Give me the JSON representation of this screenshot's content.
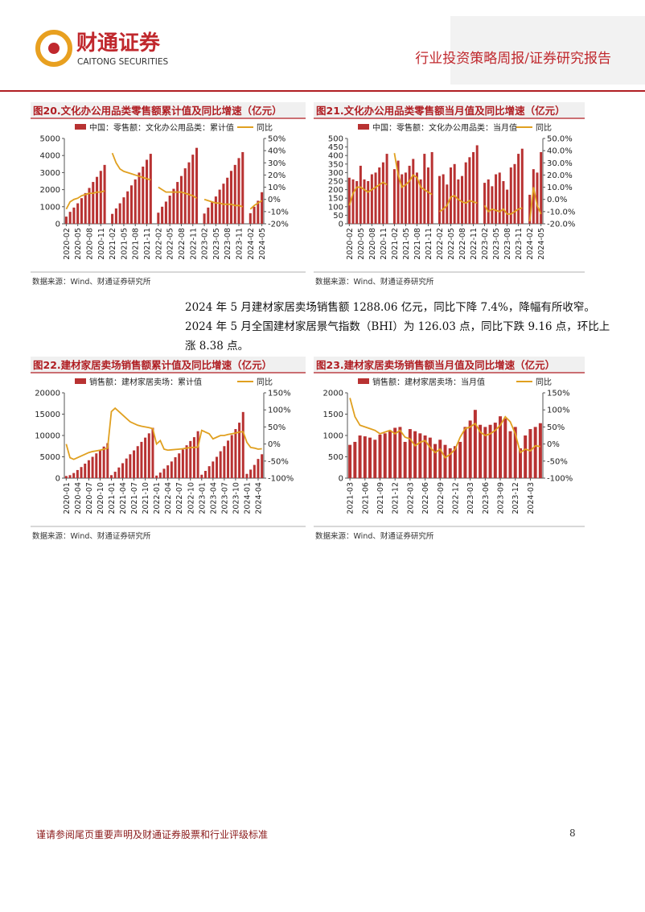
{
  "header": {
    "logo_cn": "财通证券",
    "logo_en": "CAITONG SECURITIES",
    "report_type": "行业投资策略周报/证券研究报告"
  },
  "chart_data": [
    {
      "type": "combo",
      "title": "图20.文化办公用品类零售额累计值及同比增速（亿元）",
      "categories": [
        "2020-02",
        null,
        null,
        "2020-05",
        null,
        null,
        "2020-08",
        null,
        null,
        "2020-11",
        null,
        null,
        "2021-02",
        null,
        null,
        "2021-05",
        null,
        null,
        "2021-08",
        null,
        null,
        "2021-11",
        null,
        null,
        "2022-02",
        null,
        null,
        "2022-05",
        null,
        null,
        "2022-08",
        null,
        null,
        "2022-11",
        null,
        null,
        "2023-02",
        null,
        null,
        "2023-05",
        null,
        null,
        "2023-08",
        null,
        null,
        "2023-11",
        null,
        null,
        "2024-02",
        null,
        null,
        "2024-05"
      ],
      "series": [
        {
          "name": "中国：零售额：文化办公用品类：累计值",
          "color": "#b83232",
          "values": [
            420,
            700,
            950,
            1200,
            1500,
            1800,
            2100,
            2450,
            2750,
            3100,
            3450,
            null,
            580,
            900,
            1200,
            1550,
            1900,
            2250,
            2600,
            3000,
            3350,
            3750,
            4100,
            null,
            650,
            1000,
            1300,
            1650,
            2050,
            2450,
            2800,
            3250,
            3600,
            4050,
            4450,
            null,
            600,
            950,
            1250,
            1600,
            2000,
            2350,
            2700,
            3100,
            3450,
            3850,
            4200,
            null,
            620,
            1000,
            1350,
            1850
          ]
        },
        {
          "name": "同比",
          "color": "#e0a020",
          "axis": "y2",
          "values": [
            -8,
            -2,
            0,
            1,
            3,
            4,
            5,
            5,
            6,
            6,
            7,
            null,
            38,
            30,
            25,
            23,
            22,
            21,
            20,
            19,
            18,
            17,
            16,
            null,
            10,
            8,
            6,
            6,
            6,
            6,
            6,
            5,
            4,
            3,
            1,
            null,
            0,
            -1,
            -2,
            -3,
            -3,
            -4,
            -4,
            -4,
            -5,
            -5,
            -6,
            null,
            -8,
            -5,
            -3,
            -1
          ]
        }
      ],
      "ylim": [
        0,
        5000
      ],
      "yticks": [
        0,
        1000,
        2000,
        3000,
        4000,
        5000
      ],
      "y2lim": [
        -20,
        50
      ],
      "y2ticks": [
        {
          "value": -20,
          "label": "-20%"
        },
        {
          "value": -10,
          "label": "-10%"
        },
        {
          "value": 0,
          "label": "0%"
        },
        {
          "value": 10,
          "label": "10%"
        },
        {
          "value": 20,
          "label": "20%"
        },
        {
          "value": 30,
          "label": "30%"
        },
        {
          "value": 40,
          "label": "40%"
        },
        {
          "value": 50,
          "label": "50%"
        }
      ],
      "source": "数据来源：Wind、财通证券研究所"
    },
    {
      "type": "combo",
      "title": "图21.文化办公用品类零售额当月值及同比增速（亿元）",
      "categories": [
        "2020-02",
        null,
        null,
        "2020-05",
        null,
        null,
        "2020-08",
        null,
        null,
        "2020-11",
        null,
        null,
        "2021-02",
        null,
        null,
        "2021-05",
        null,
        null,
        "2021-08",
        null,
        null,
        "2021-11",
        null,
        null,
        "2022-02",
        null,
        null,
        "2022-05",
        null,
        null,
        "2022-08",
        null,
        null,
        "2022-11",
        null,
        null,
        "2023-02",
        null,
        null,
        "2023-05",
        null,
        null,
        "2023-08",
        null,
        null,
        "2023-11",
        null,
        null,
        "2024-02",
        null,
        null,
        "2024-05"
      ],
      "series": [
        {
          "name": "中国：零售额：文化办公用品类：当月值",
          "color": "#b83232",
          "values": [
            270,
            260,
            250,
            340,
            260,
            250,
            290,
            300,
            330,
            360,
            410,
            null,
            320,
            370,
            290,
            300,
            340,
            380,
            300,
            260,
            410,
            330,
            420,
            null,
            280,
            290,
            230,
            330,
            350,
            260,
            280,
            360,
            390,
            420,
            460,
            null,
            240,
            260,
            220,
            290,
            300,
            250,
            200,
            330,
            350,
            410,
            440,
            null,
            170,
            320,
            300,
            420
          ]
        },
        {
          "name": "同比",
          "color": "#e0a020",
          "axis": "y2",
          "values": [
            -5,
            5,
            10,
            10,
            8,
            6,
            8,
            10,
            12,
            14,
            12,
            null,
            38,
            20,
            10,
            12,
            15,
            20,
            18,
            10,
            8,
            6,
            4,
            null,
            -10,
            -8,
            -5,
            2,
            3,
            0,
            -2,
            -3,
            -1,
            -2,
            -3,
            null,
            -5,
            -10,
            -8,
            -9,
            -10,
            -8,
            -12,
            -12,
            -10,
            -8,
            -7,
            null,
            -18,
            10,
            -5,
            -12
          ]
        }
      ],
      "ylim": [
        0,
        500
      ],
      "yticks": [
        0,
        50,
        100,
        150,
        200,
        250,
        300,
        350,
        400,
        450,
        500
      ],
      "y2lim": [
        -20,
        50
      ],
      "y2ticks": [
        {
          "value": -20,
          "label": "-20.0%"
        },
        {
          "value": -10,
          "label": "-10.0%"
        },
        {
          "value": 0,
          "label": "0.0%"
        },
        {
          "value": 10,
          "label": "10.0%"
        },
        {
          "value": 20,
          "label": "20.0%"
        },
        {
          "value": 30,
          "label": "30.0%"
        },
        {
          "value": 40,
          "label": "40.0%"
        },
        {
          "value": 50,
          "label": "50.0%"
        }
      ],
      "source": "数据来源：Wind、财通证券研究所"
    },
    {
      "type": "combo",
      "title": "图22.建材家居卖场销售额累计值及同比增速（亿元）",
      "categories": [
        "2020-01",
        null,
        null,
        "2020-04",
        null,
        null,
        "2020-07",
        null,
        null,
        "2020-10",
        null,
        null,
        "2021-01",
        null,
        null,
        "2021-04",
        null,
        null,
        "2021-07",
        null,
        null,
        "2021-10",
        null,
        null,
        "2022-01",
        null,
        null,
        "2022-04",
        null,
        null,
        "2022-07",
        null,
        null,
        "2022-10",
        null,
        null,
        "2023-01",
        null,
        null,
        "2023-04",
        null,
        null,
        "2023-07",
        null,
        null,
        "2023-10",
        null,
        null,
        "2024-01",
        null,
        null,
        "2024-04",
        null
      ],
      "series": [
        {
          "name": "销售额：建材家居卖场：累计值",
          "color": "#b83232",
          "values": [
            500,
            700,
            1200,
            1900,
            2600,
            3400,
            4200,
            5000,
            5800,
            6600,
            7400,
            8200,
            700,
            1500,
            2500,
            3500,
            4600,
            5600,
            6500,
            7500,
            8500,
            9500,
            10500,
            11800,
            600,
            1300,
            2200,
            3000,
            3900,
            4900,
            5800,
            6700,
            7700,
            8700,
            9600,
            11000,
            800,
            1700,
            2800,
            3900,
            5000,
            6300,
            7500,
            8800,
            10100,
            11500,
            13000,
            15500,
            1000,
            2000,
            3100,
            4500,
            5600
          ]
        },
        {
          "name": "同比",
          "color": "#e0a020",
          "axis": "y2",
          "values": [
            0,
            -40,
            -45,
            -40,
            -35,
            -30,
            -25,
            -22,
            -20,
            -18,
            -15,
            -12,
            95,
            105,
            95,
            85,
            75,
            65,
            60,
            55,
            52,
            50,
            48,
            45,
            0,
            10,
            -15,
            -18,
            -17,
            -16,
            -15,
            -14,
            -12,
            -10,
            -10,
            -9,
            40,
            35,
            30,
            15,
            20,
            25,
            25,
            28,
            30,
            32,
            35,
            36,
            5,
            -10,
            -12,
            -15,
            -14
          ]
        }
      ],
      "ylim": [
        0,
        20000
      ],
      "yticks": [
        0,
        5000,
        10000,
        15000,
        20000
      ],
      "y2lim": [
        -100,
        150
      ],
      "y2ticks": [
        {
          "value": -100,
          "label": "-100%"
        },
        {
          "value": -50,
          "label": "-50%"
        },
        {
          "value": 0,
          "label": "0%"
        },
        {
          "value": 50,
          "label": "50%"
        },
        {
          "value": 100,
          "label": "100%"
        },
        {
          "value": 150,
          "label": "150%"
        }
      ],
      "source": "数据来源：Wind、财通证券研究所"
    },
    {
      "type": "combo",
      "title": "图23.建材家居卖场销售额当月值及同比增速（亿元）",
      "categories": [
        "2021-03",
        null,
        null,
        "2021-06",
        null,
        null,
        "2021-09",
        null,
        null,
        "2021-12",
        null,
        null,
        "2022-03",
        null,
        null,
        "2022-06",
        null,
        null,
        "2022-09",
        null,
        null,
        "2022-12",
        null,
        null,
        "2023-03",
        null,
        null,
        "2023-06",
        null,
        null,
        "2023-09",
        null,
        null,
        "2023-12",
        null,
        null,
        "2024-03",
        null,
        null
      ],
      "series": [
        {
          "name": "销售额：建材家居卖场：当月值",
          "color": "#b83232",
          "values": [
            780,
            850,
            1000,
            980,
            950,
            900,
            1020,
            1050,
            1120,
            1180,
            1200,
            850,
            1150,
            1100,
            1050,
            1000,
            950,
            800,
            900,
            780,
            700,
            750,
            850,
            1200,
            1350,
            1600,
            1250,
            1200,
            1250,
            1300,
            1450,
            1400,
            1100,
            1200,
            700,
            1000,
            1150,
            1200,
            1288.06
          ]
        },
        {
          "name": "同比",
          "color": "#e0a020",
          "axis": "y2",
          "values": [
            135,
            80,
            55,
            50,
            45,
            40,
            30,
            35,
            40,
            30,
            40,
            20,
            15,
            -5,
            5,
            10,
            -10,
            -25,
            -15,
            -40,
            -30,
            -15,
            20,
            45,
            50,
            60,
            35,
            25,
            30,
            40,
            55,
            80,
            65,
            30,
            -25,
            -15,
            -20,
            -5,
            -7.4
          ]
        }
      ],
      "ylim": [
        0,
        2000
      ],
      "yticks": [
        0,
        500,
        1000,
        1500,
        2000
      ],
      "y2lim": [
        -100,
        150
      ],
      "y2ticks": [
        {
          "value": -100,
          "label": "-100%"
        },
        {
          "value": -50,
          "label": "-50%"
        },
        {
          "value": 0,
          "label": "0%"
        },
        {
          "value": 50,
          "label": "50%"
        },
        {
          "value": 100,
          "label": "100%"
        },
        {
          "value": 150,
          "label": "150%"
        }
      ],
      "source": "数据来源：Wind、财通证券研究所"
    }
  ],
  "body": {
    "paragraphs": [
      "2024 年 5 月建材家居卖场销售额 1288.06 亿元，同比下降 7.4%，降幅有所收窄。",
      "2024 年 5 月全国建材家居景气指数（BHI）为 126.03 点，同比下跌 9.16 点，环比上涨 8.38 点。"
    ]
  },
  "footer": {
    "disclaimer": "谨请参阅尾页重要声明及财通证券股票和行业评级标准",
    "page": "8"
  }
}
